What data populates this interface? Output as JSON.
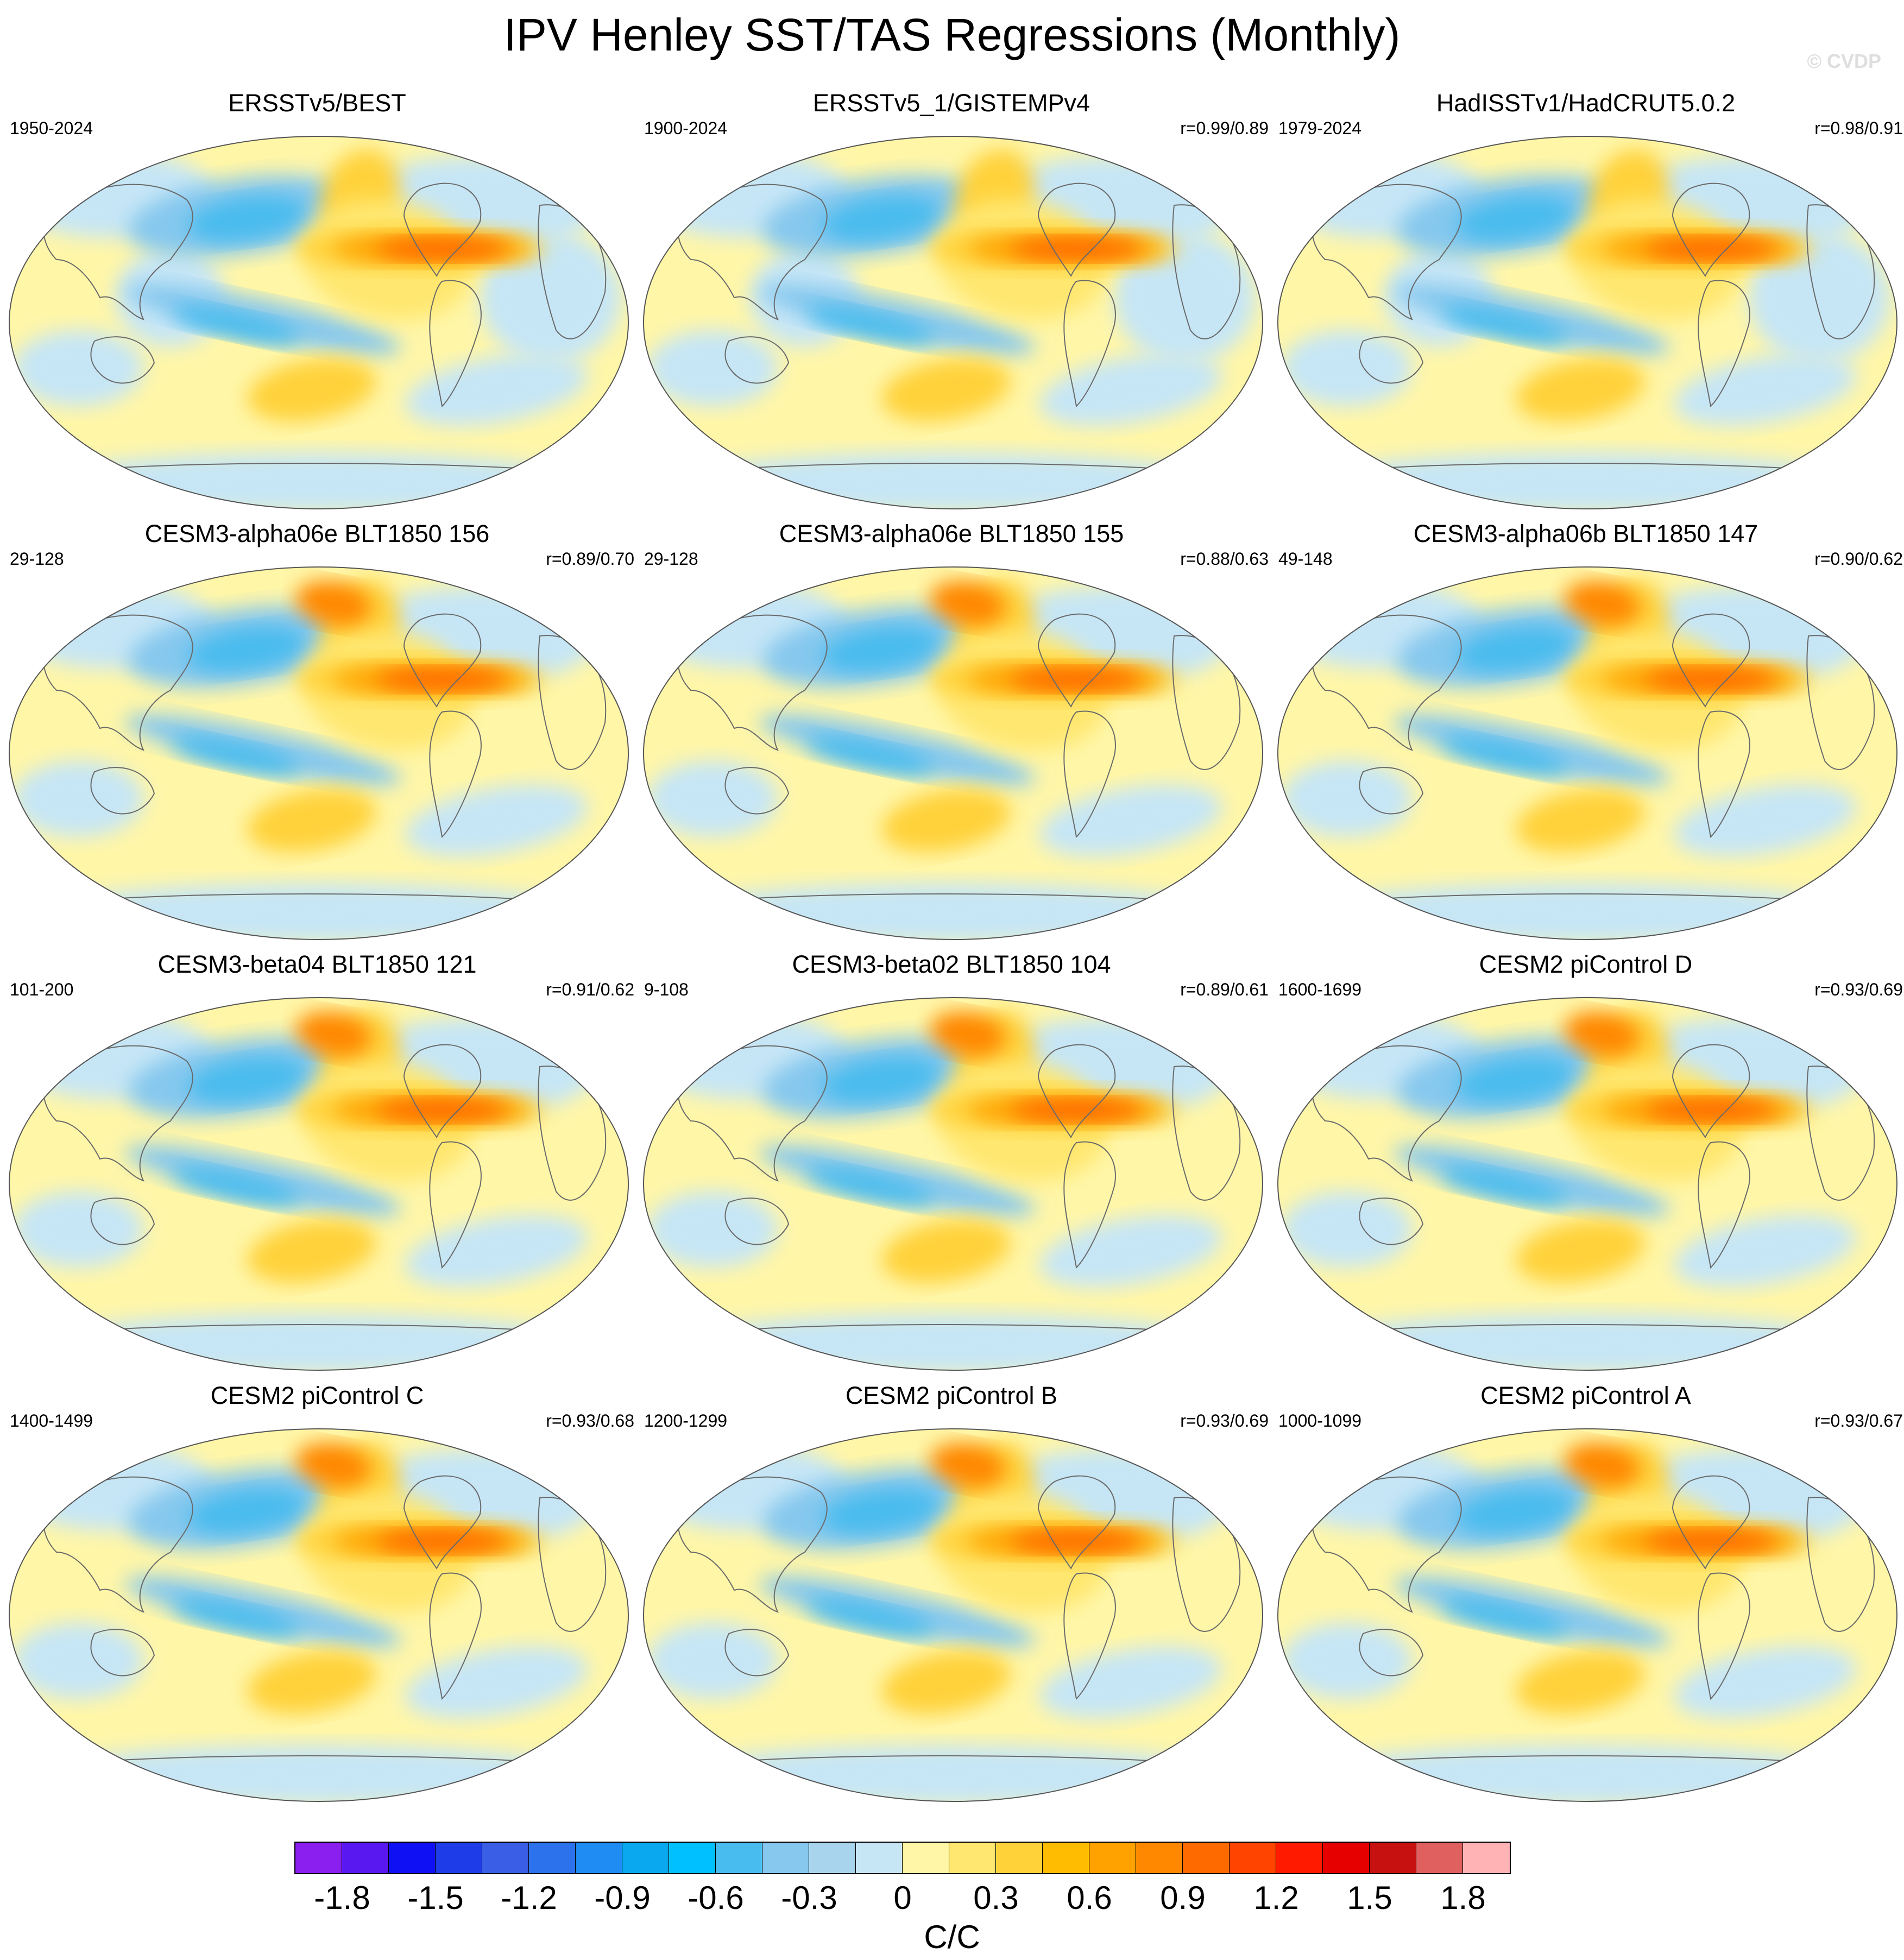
{
  "figure": {
    "title": "IPV Henley SST/TAS Regressions (Monthly)",
    "watermark": "© CVDP"
  },
  "panels": [
    {
      "title": "ERSSTv5/BEST",
      "period": "1950-2024",
      "corr": ""
    },
    {
      "title": "ERSSTv5_1/GISTEMPv4",
      "period": "1900-2024",
      "corr": "r=0.99/0.89"
    },
    {
      "title": "HadISSTv1/HadCRUT5.0.2",
      "period": "1979-2024",
      "corr": "r=0.98/0.91"
    },
    {
      "title": "CESM3-alpha06e BLT1850 156",
      "period": "29-128",
      "corr": "r=0.89/0.70"
    },
    {
      "title": "CESM3-alpha06e BLT1850 155",
      "period": "29-128",
      "corr": "r=0.88/0.63"
    },
    {
      "title": "CESM3-alpha06b BLT1850 147",
      "period": "49-148",
      "corr": "r=0.90/0.62"
    },
    {
      "title": "CESM3-beta04 BLT1850 121",
      "period": "101-200",
      "corr": "r=0.91/0.62"
    },
    {
      "title": "CESM3-beta02 BLT1850 104",
      "period": "9-108",
      "corr": "r=0.89/0.61"
    },
    {
      "title": "CESM2 piControl D",
      "period": "1600-1699",
      "corr": "r=0.93/0.69"
    },
    {
      "title": "CESM2 piControl C",
      "period": "1400-1499",
      "corr": "r=0.93/0.68"
    },
    {
      "title": "CESM2 piControl B",
      "period": "1200-1299",
      "corr": "r=0.93/0.69"
    },
    {
      "title": "CESM2 piControl A",
      "period": "1000-1099",
      "corr": "r=0.93/0.67"
    }
  ],
  "colorbar": {
    "units": "C/C",
    "ticks": [
      "-1.8",
      "-1.5",
      "-1.2",
      "-0.9",
      "-0.6",
      "-0.3",
      "0",
      "0.3",
      "0.6",
      "0.9",
      "1.2",
      "1.5",
      "1.8"
    ],
    "colors": [
      "#8a1ff0",
      "#5a18f0",
      "#1010f5",
      "#1e3ce8",
      "#3a5ee6",
      "#2b72ec",
      "#1e8cf2",
      "#0aa8ef",
      "#00c0ff",
      "#48bcee",
      "#86c8ee",
      "#a9d4ee",
      "#c6e6f6",
      "#fff6a8",
      "#ffe770",
      "#ffd23a",
      "#ffbc00",
      "#ffa200",
      "#ff8800",
      "#ff6a00",
      "#ff4400",
      "#ff1a00",
      "#e60000",
      "#c71010",
      "#e06060",
      "#ffb3b5"
    ]
  }
}
